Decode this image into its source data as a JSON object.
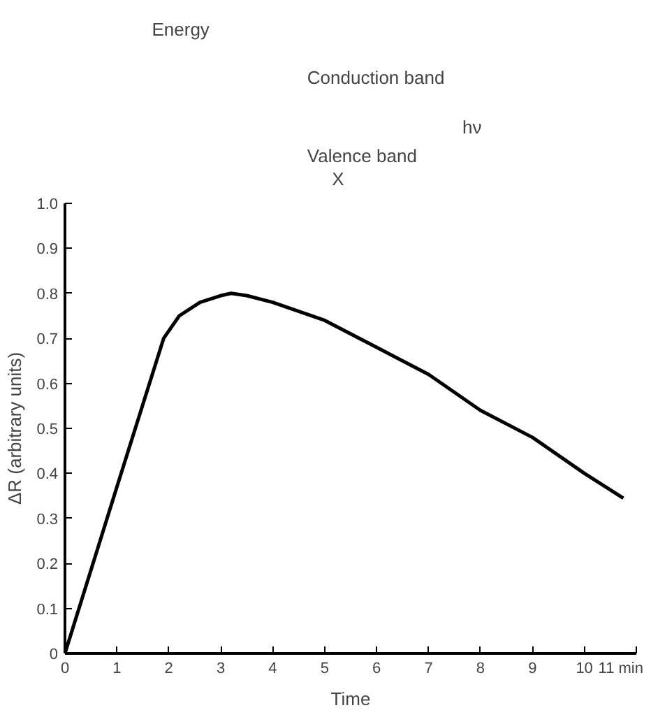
{
  "chart_data": {
    "type": "line",
    "xlabel": "Time",
    "ylabel": "ΔR (arbitrary units)",
    "x": [
      0,
      1,
      1.9,
      2.2,
      2.6,
      3,
      3.2,
      3.5,
      4,
      5,
      6,
      7,
      8,
      9,
      10,
      10.75
    ],
    "series": [
      {
        "color": "#000000",
        "values": [
          0,
          0.37,
          0.7,
          0.75,
          0.78,
          0.795,
          0.8,
          0.795,
          0.78,
          0.74,
          0.68,
          0.62,
          0.54,
          0.48,
          0.4,
          0.345
        ]
      }
    ],
    "xlim": [
      0,
      11
    ],
    "ylim": [
      0,
      1.0
    ],
    "xticks": [
      0,
      1,
      2,
      3,
      4,
      5,
      6,
      7,
      8,
      9,
      10,
      {
        "value": 11,
        "label": "11 min"
      }
    ],
    "yticks": [
      0,
      0.1,
      0.2,
      0.3,
      0.4,
      0.5,
      0.6,
      0.7,
      0.8,
      0.9,
      "1.0"
    ],
    "grid": false,
    "marker": "none",
    "line_style": "solid",
    "annotations": [
      "Energy",
      "Conduction band",
      "Valence band",
      "X",
      "hν"
    ]
  }
}
